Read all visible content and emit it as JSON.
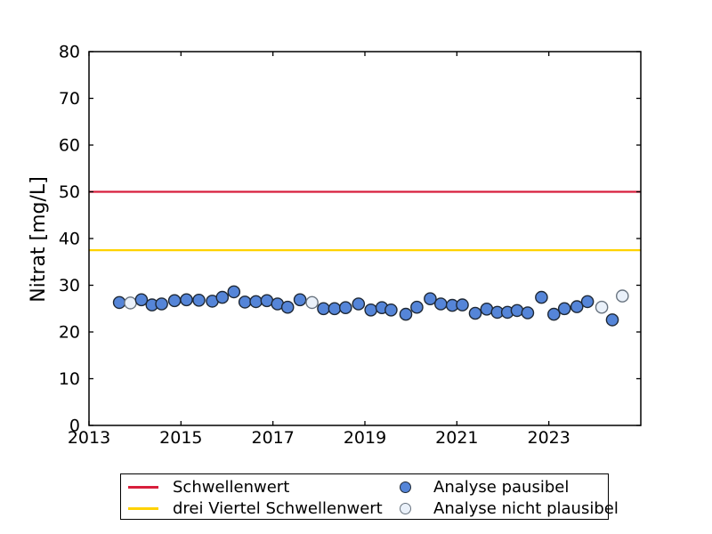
{
  "chart_data": {
    "type": "scatter",
    "title": "",
    "xlabel": "",
    "ylabel": "Nitrat [mg/L]",
    "xlim": [
      2013,
      2025
    ],
    "ylim": [
      0,
      80
    ],
    "xticks": [
      2013,
      2015,
      2017,
      2019,
      2021,
      2023
    ],
    "yticks": [
      0,
      10,
      20,
      30,
      40,
      50,
      60,
      70,
      80
    ],
    "grid": false,
    "legend_position": "bottom-center",
    "hlines": [
      {
        "label": "Schwellenwert",
        "y": 50,
        "color": "#d81e3c"
      },
      {
        "label": "drei Viertel Schwellenwert",
        "y": 37.5,
        "color": "#ffd200"
      }
    ],
    "series": [
      {
        "name": "Analyse pausibel",
        "marker": "circle",
        "marker_fill": "#5585d8",
        "marker_edge": "#1e2835",
        "points": [
          [
            2013.66,
            26.3
          ],
          [
            2014.14,
            26.9
          ],
          [
            2014.37,
            25.8
          ],
          [
            2014.58,
            26.0
          ],
          [
            2014.86,
            26.7
          ],
          [
            2015.12,
            26.9
          ],
          [
            2015.39,
            26.8
          ],
          [
            2015.68,
            26.6
          ],
          [
            2015.9,
            27.4
          ],
          [
            2016.15,
            28.6
          ],
          [
            2016.39,
            26.4
          ],
          [
            2016.63,
            26.5
          ],
          [
            2016.87,
            26.7
          ],
          [
            2017.1,
            26.0
          ],
          [
            2017.32,
            25.3
          ],
          [
            2017.59,
            26.9
          ],
          [
            2018.1,
            25.0
          ],
          [
            2018.34,
            25.0
          ],
          [
            2018.58,
            25.2
          ],
          [
            2018.86,
            26.0
          ],
          [
            2019.13,
            24.7
          ],
          [
            2019.37,
            25.2
          ],
          [
            2019.57,
            24.7
          ],
          [
            2019.89,
            23.8
          ],
          [
            2020.13,
            25.3
          ],
          [
            2020.42,
            27.1
          ],
          [
            2020.65,
            26.0
          ],
          [
            2020.9,
            25.7
          ],
          [
            2021.12,
            25.8
          ],
          [
            2021.4,
            24.0
          ],
          [
            2021.65,
            24.9
          ],
          [
            2021.88,
            24.2
          ],
          [
            2022.1,
            24.2
          ],
          [
            2022.31,
            24.6
          ],
          [
            2022.54,
            24.1
          ],
          [
            2022.84,
            27.4
          ],
          [
            2023.11,
            23.8
          ],
          [
            2023.34,
            25.0
          ],
          [
            2023.61,
            25.4
          ],
          [
            2023.84,
            26.5
          ],
          [
            2024.38,
            22.6
          ]
        ]
      },
      {
        "name": "Analyse nicht plausibel",
        "marker": "circle",
        "marker_fill": "#eaf1fa",
        "marker_edge": "#68737f",
        "points": [
          [
            2013.9,
            26.2
          ],
          [
            2017.85,
            26.3
          ],
          [
            2024.15,
            25.3
          ],
          [
            2024.6,
            27.7
          ]
        ]
      }
    ]
  }
}
